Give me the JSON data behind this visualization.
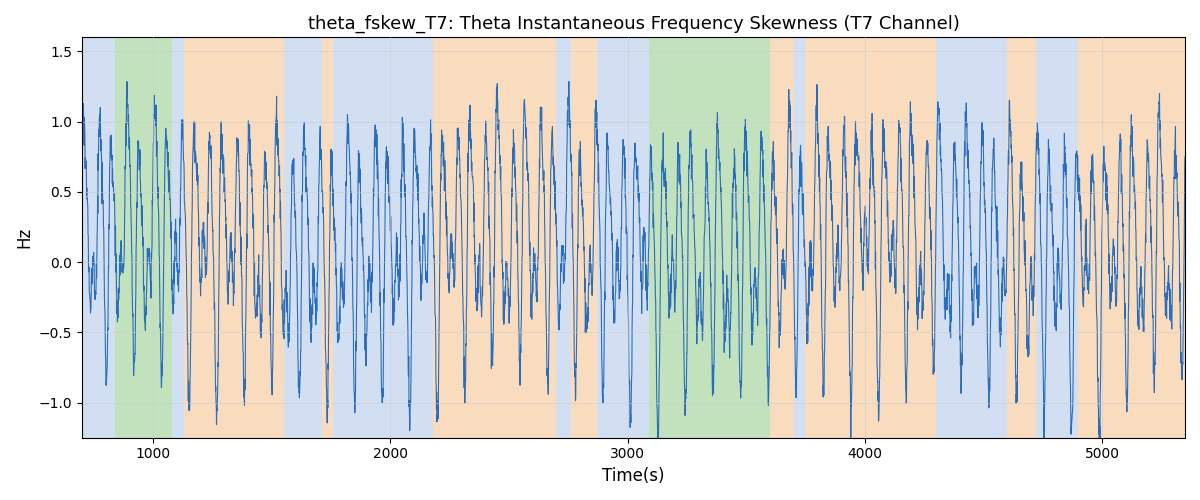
{
  "title": "theta_fskew_T7: Theta Instantaneous Frequency Skewness (T7 Channel)",
  "xlabel": "Time(s)",
  "ylabel": "Hz",
  "xlim": [
    700,
    5350
  ],
  "ylim": [
    -1.25,
    1.6
  ],
  "line_color": "#2a6ebb",
  "line_width": 0.8,
  "bg_regions": [
    {
      "xstart": 700,
      "xend": 840,
      "color": "#aec6e8",
      "alpha": 0.55
    },
    {
      "xstart": 840,
      "xend": 1080,
      "color": "#90c987",
      "alpha": 0.55
    },
    {
      "xstart": 1080,
      "xend": 1130,
      "color": "#aec6e8",
      "alpha": 0.55
    },
    {
      "xstart": 1130,
      "xend": 1550,
      "color": "#f5c08a",
      "alpha": 0.55
    },
    {
      "xstart": 1550,
      "xend": 1710,
      "color": "#aec6e8",
      "alpha": 0.55
    },
    {
      "xstart": 1710,
      "xend": 1760,
      "color": "#f5c08a",
      "alpha": 0.55
    },
    {
      "xstart": 1760,
      "xend": 2180,
      "color": "#aec6e8",
      "alpha": 0.55
    },
    {
      "xstart": 2180,
      "xend": 2700,
      "color": "#f5c08a",
      "alpha": 0.55
    },
    {
      "xstart": 2700,
      "xend": 2760,
      "color": "#aec6e8",
      "alpha": 0.55
    },
    {
      "xstart": 2760,
      "xend": 2870,
      "color": "#f5c08a",
      "alpha": 0.55
    },
    {
      "xstart": 2870,
      "xend": 3090,
      "color": "#aec6e8",
      "alpha": 0.55
    },
    {
      "xstart": 3090,
      "xend": 3600,
      "color": "#90c987",
      "alpha": 0.55
    },
    {
      "xstart": 3600,
      "xend": 3700,
      "color": "#f5c08a",
      "alpha": 0.55
    },
    {
      "xstart": 3700,
      "xend": 3750,
      "color": "#aec6e8",
      "alpha": 0.55
    },
    {
      "xstart": 3750,
      "xend": 4300,
      "color": "#f5c08a",
      "alpha": 0.55
    },
    {
      "xstart": 4300,
      "xend": 4600,
      "color": "#aec6e8",
      "alpha": 0.55
    },
    {
      "xstart": 4600,
      "xend": 4720,
      "color": "#f5c08a",
      "alpha": 0.55
    },
    {
      "xstart": 4720,
      "xend": 4900,
      "color": "#aec6e8",
      "alpha": 0.55
    },
    {
      "xstart": 4900,
      "xend": 5350,
      "color": "#f5c08a",
      "alpha": 0.55
    }
  ],
  "seed": 1234,
  "n_points": 4500,
  "yticks": [
    -1.0,
    -0.5,
    0.0,
    0.5,
    1.0,
    1.5
  ],
  "xticks": [
    1000,
    2000,
    3000,
    4000,
    5000
  ],
  "grid_color": "#cccccc",
  "grid_alpha": 0.8
}
